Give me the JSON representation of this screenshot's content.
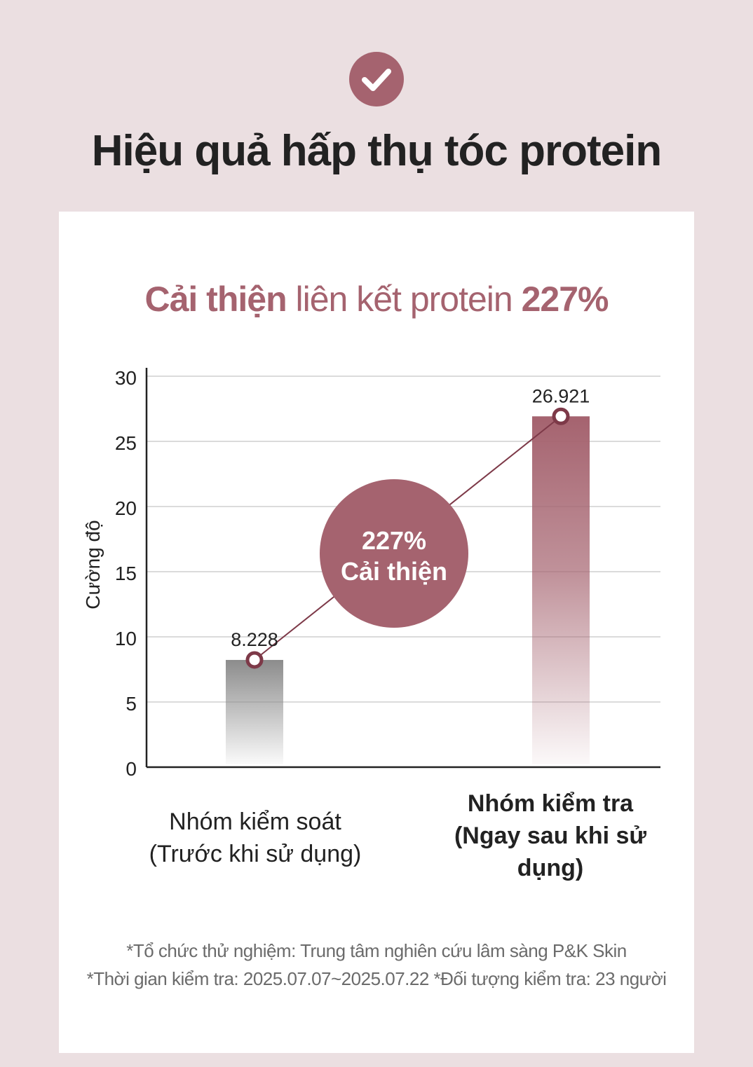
{
  "header": {
    "check_icon": "check-icon",
    "accent_color": "#a5636f",
    "title": "Hiệu quả hấp thụ tóc protein"
  },
  "headline": {
    "part1": "Cải thiện",
    "part2": " liên kết protein ",
    "part3": "227%"
  },
  "chart_data": {
    "type": "bar",
    "categories": [
      "Nhóm kiểm soát (Trước khi sử dụng)",
      "Nhóm kiểm tra (Ngay sau khi sử dụng)"
    ],
    "category_lines": [
      [
        "Nhóm kiểm soát",
        "(Trước khi sử dụng)"
      ],
      [
        "Nhóm kiểm tra",
        "(Ngay sau khi sử",
        "dụng)"
      ]
    ],
    "values": [
      8.228,
      26.921
    ],
    "value_labels": [
      "8.228",
      "26.921"
    ],
    "bar_colors": [
      "#8c8c8c",
      "#a5636f"
    ],
    "ylabel": "Cường độ",
    "ylim": [
      0,
      30
    ],
    "yticks": [
      0,
      5,
      10,
      15,
      20,
      25,
      30
    ],
    "grid": true,
    "improvement_badge": {
      "line1": "227%",
      "line2": "Cải thiện"
    }
  },
  "footnotes": [
    "*Tổ chức thử nghiệm: Trung tâm nghiên cứu lâm sàng P&K Skin",
    "*Thời gian kiểm tra: 2025.07.07~2025.07.22 *Đối tượng kiểm tra: 23 người"
  ]
}
